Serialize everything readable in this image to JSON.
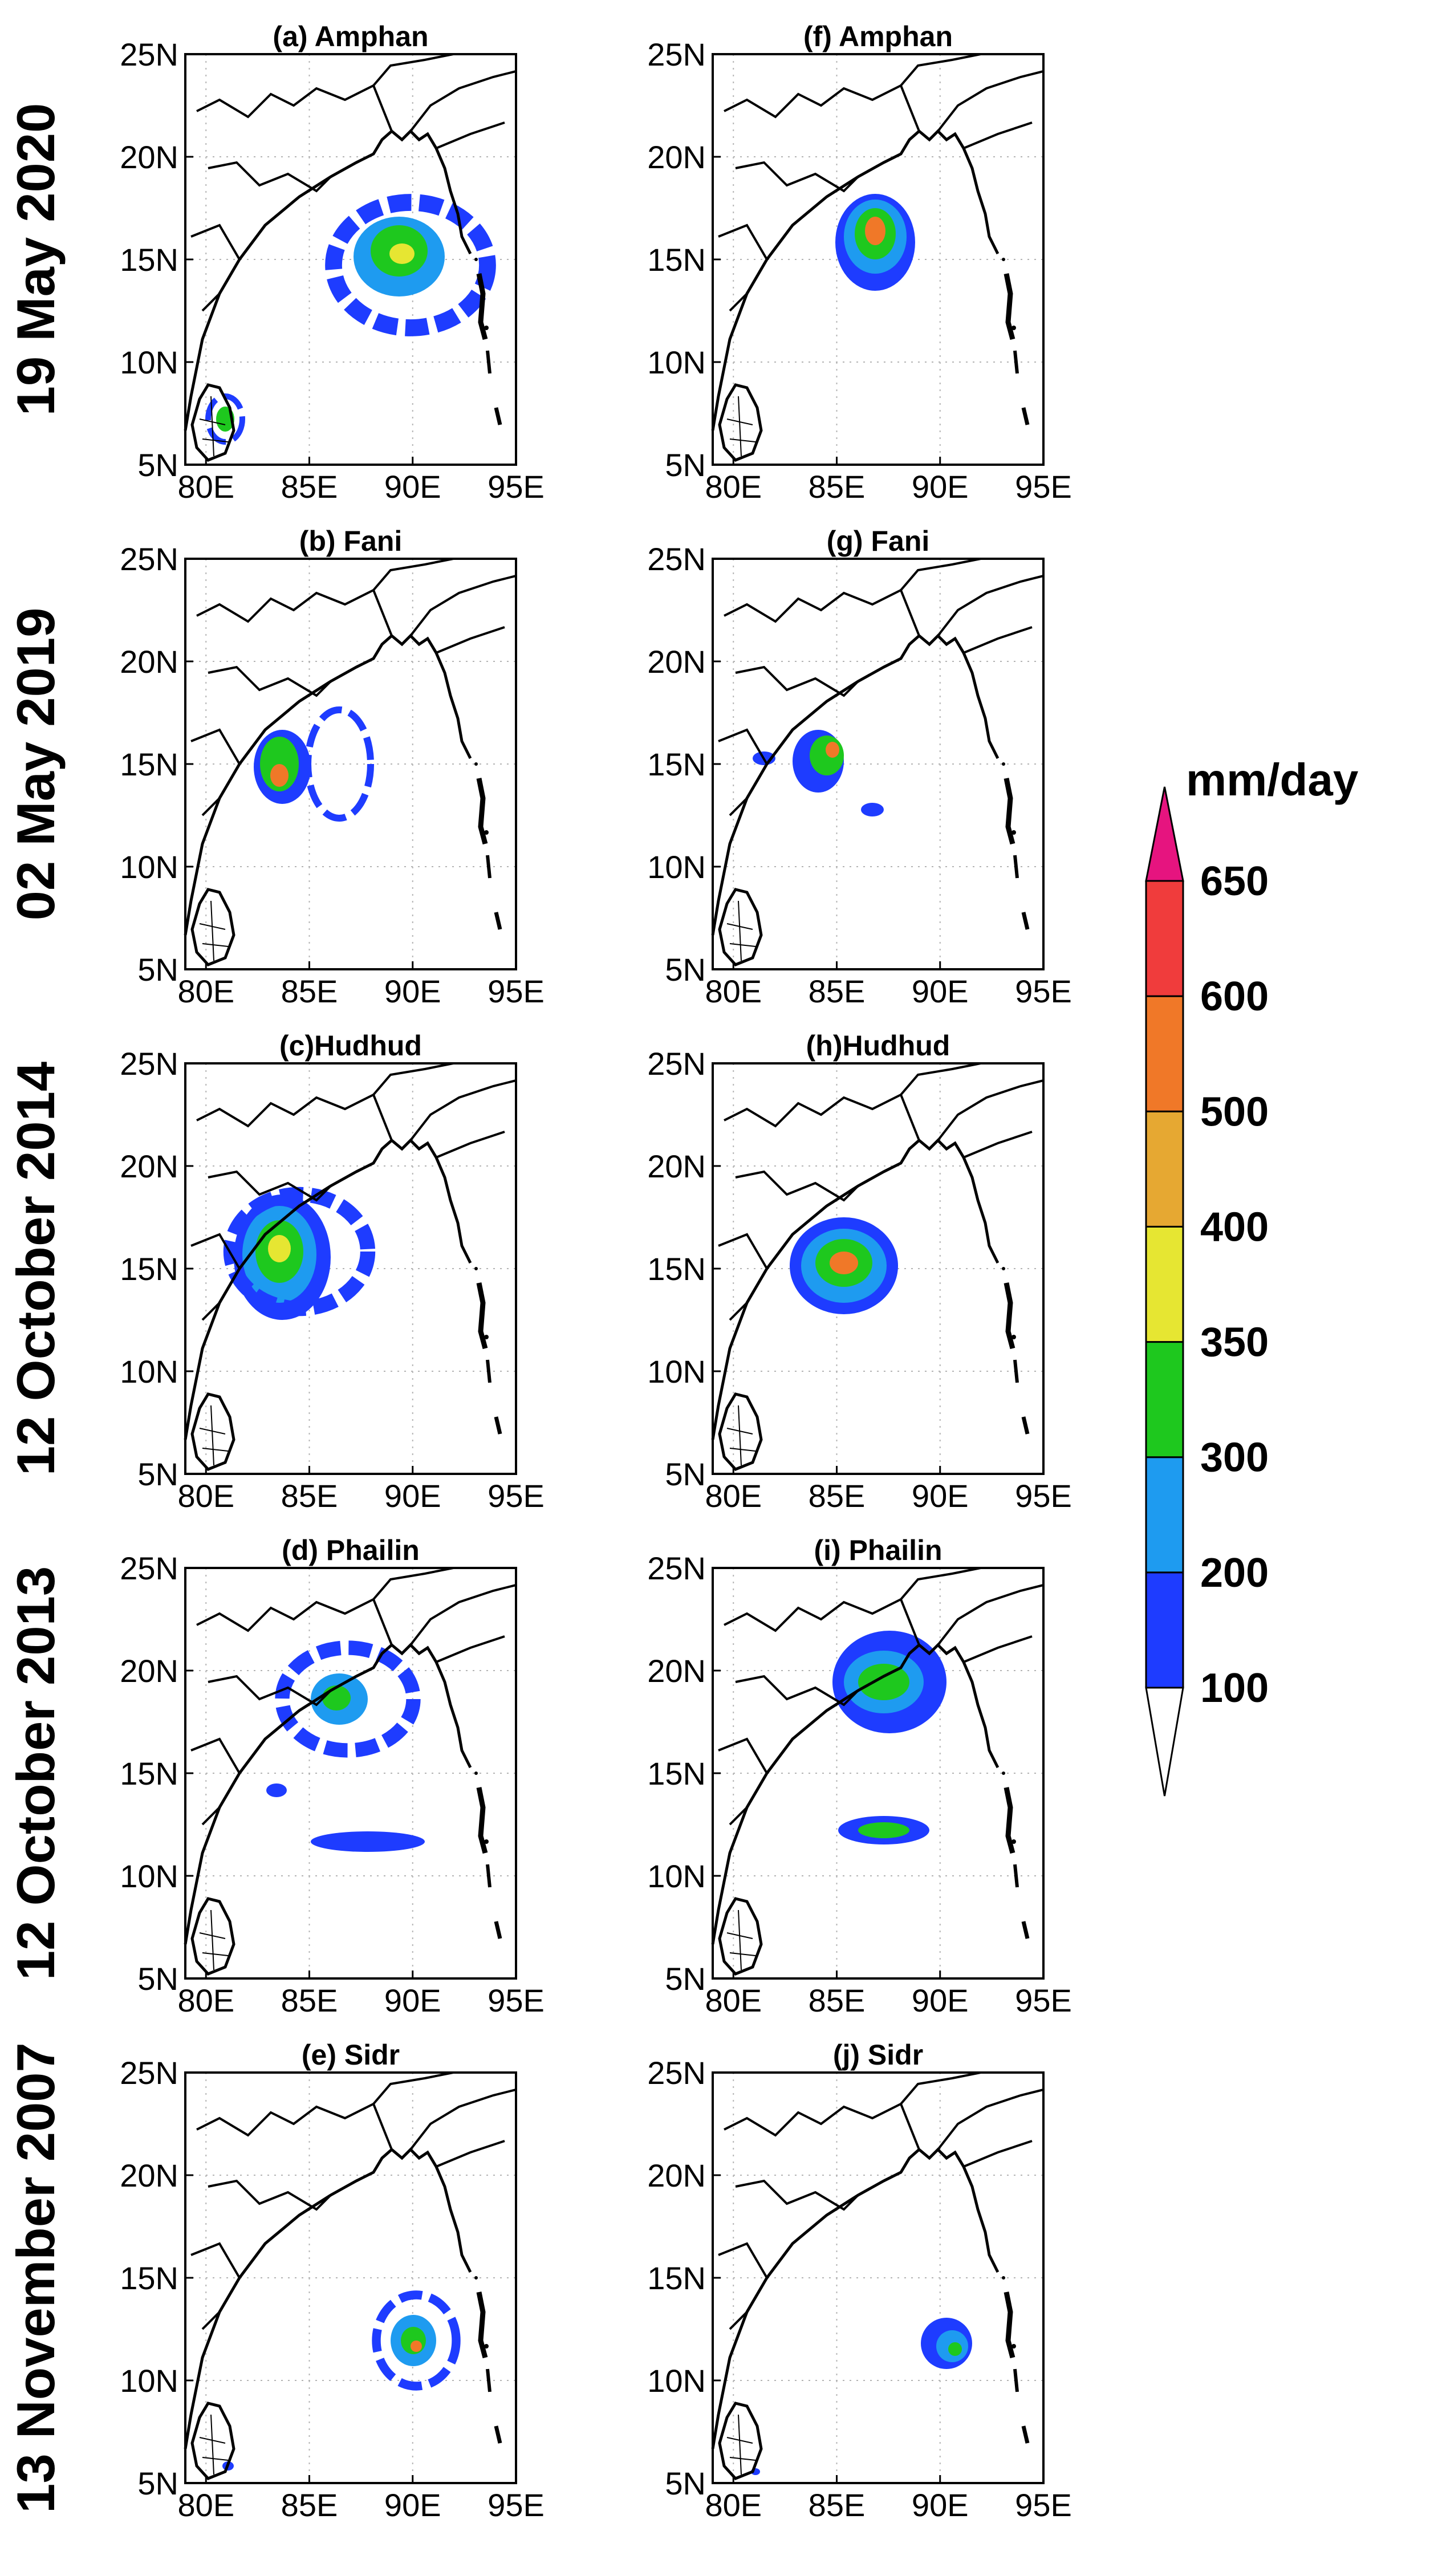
{
  "row_labels": [
    "19 May 2020",
    "02 May 2019",
    "12 October 2014",
    "12 October 2013",
    "13 November 2007"
  ],
  "panel_titles": {
    "left": [
      "(a) Amphan",
      "(b) Fani",
      "(c)Hudhud",
      "(d) Phailin",
      "(e) Sidr"
    ],
    "right": [
      "(f) Amphan",
      "(g) Fani",
      "(h)Hudhud",
      "(i) Phailin",
      "(j) Sidr"
    ]
  },
  "axes": {
    "lon_ticks": [
      "80E",
      "85E",
      "90E",
      "95E"
    ],
    "lat_ticks": [
      "25N",
      "20N",
      "15N",
      "10N",
      "5N"
    ],
    "lon_range": [
      79,
      95
    ],
    "lat_range": [
      5,
      25
    ]
  },
  "colorbar": {
    "unit": "mm/day",
    "labels": [
      "100",
      "200",
      "300",
      "350",
      "400",
      "500",
      "600",
      "650"
    ],
    "colors": [
      "#1e3cff",
      "#1e9bf0",
      "#1ec81e",
      "#e6e632",
      "#e6a832",
      "#f07828",
      "#f03c3c",
      "#e6147f"
    ],
    "upper_arrow_color": "#e6147f"
  },
  "rain_palette": {
    "blue": "#1e3cff",
    "lightblue": "#1e9bf0",
    "green": "#1ec81e",
    "yellow": "#e6e632",
    "orange": "#f07828",
    "red": "#f03c3c"
  }
}
